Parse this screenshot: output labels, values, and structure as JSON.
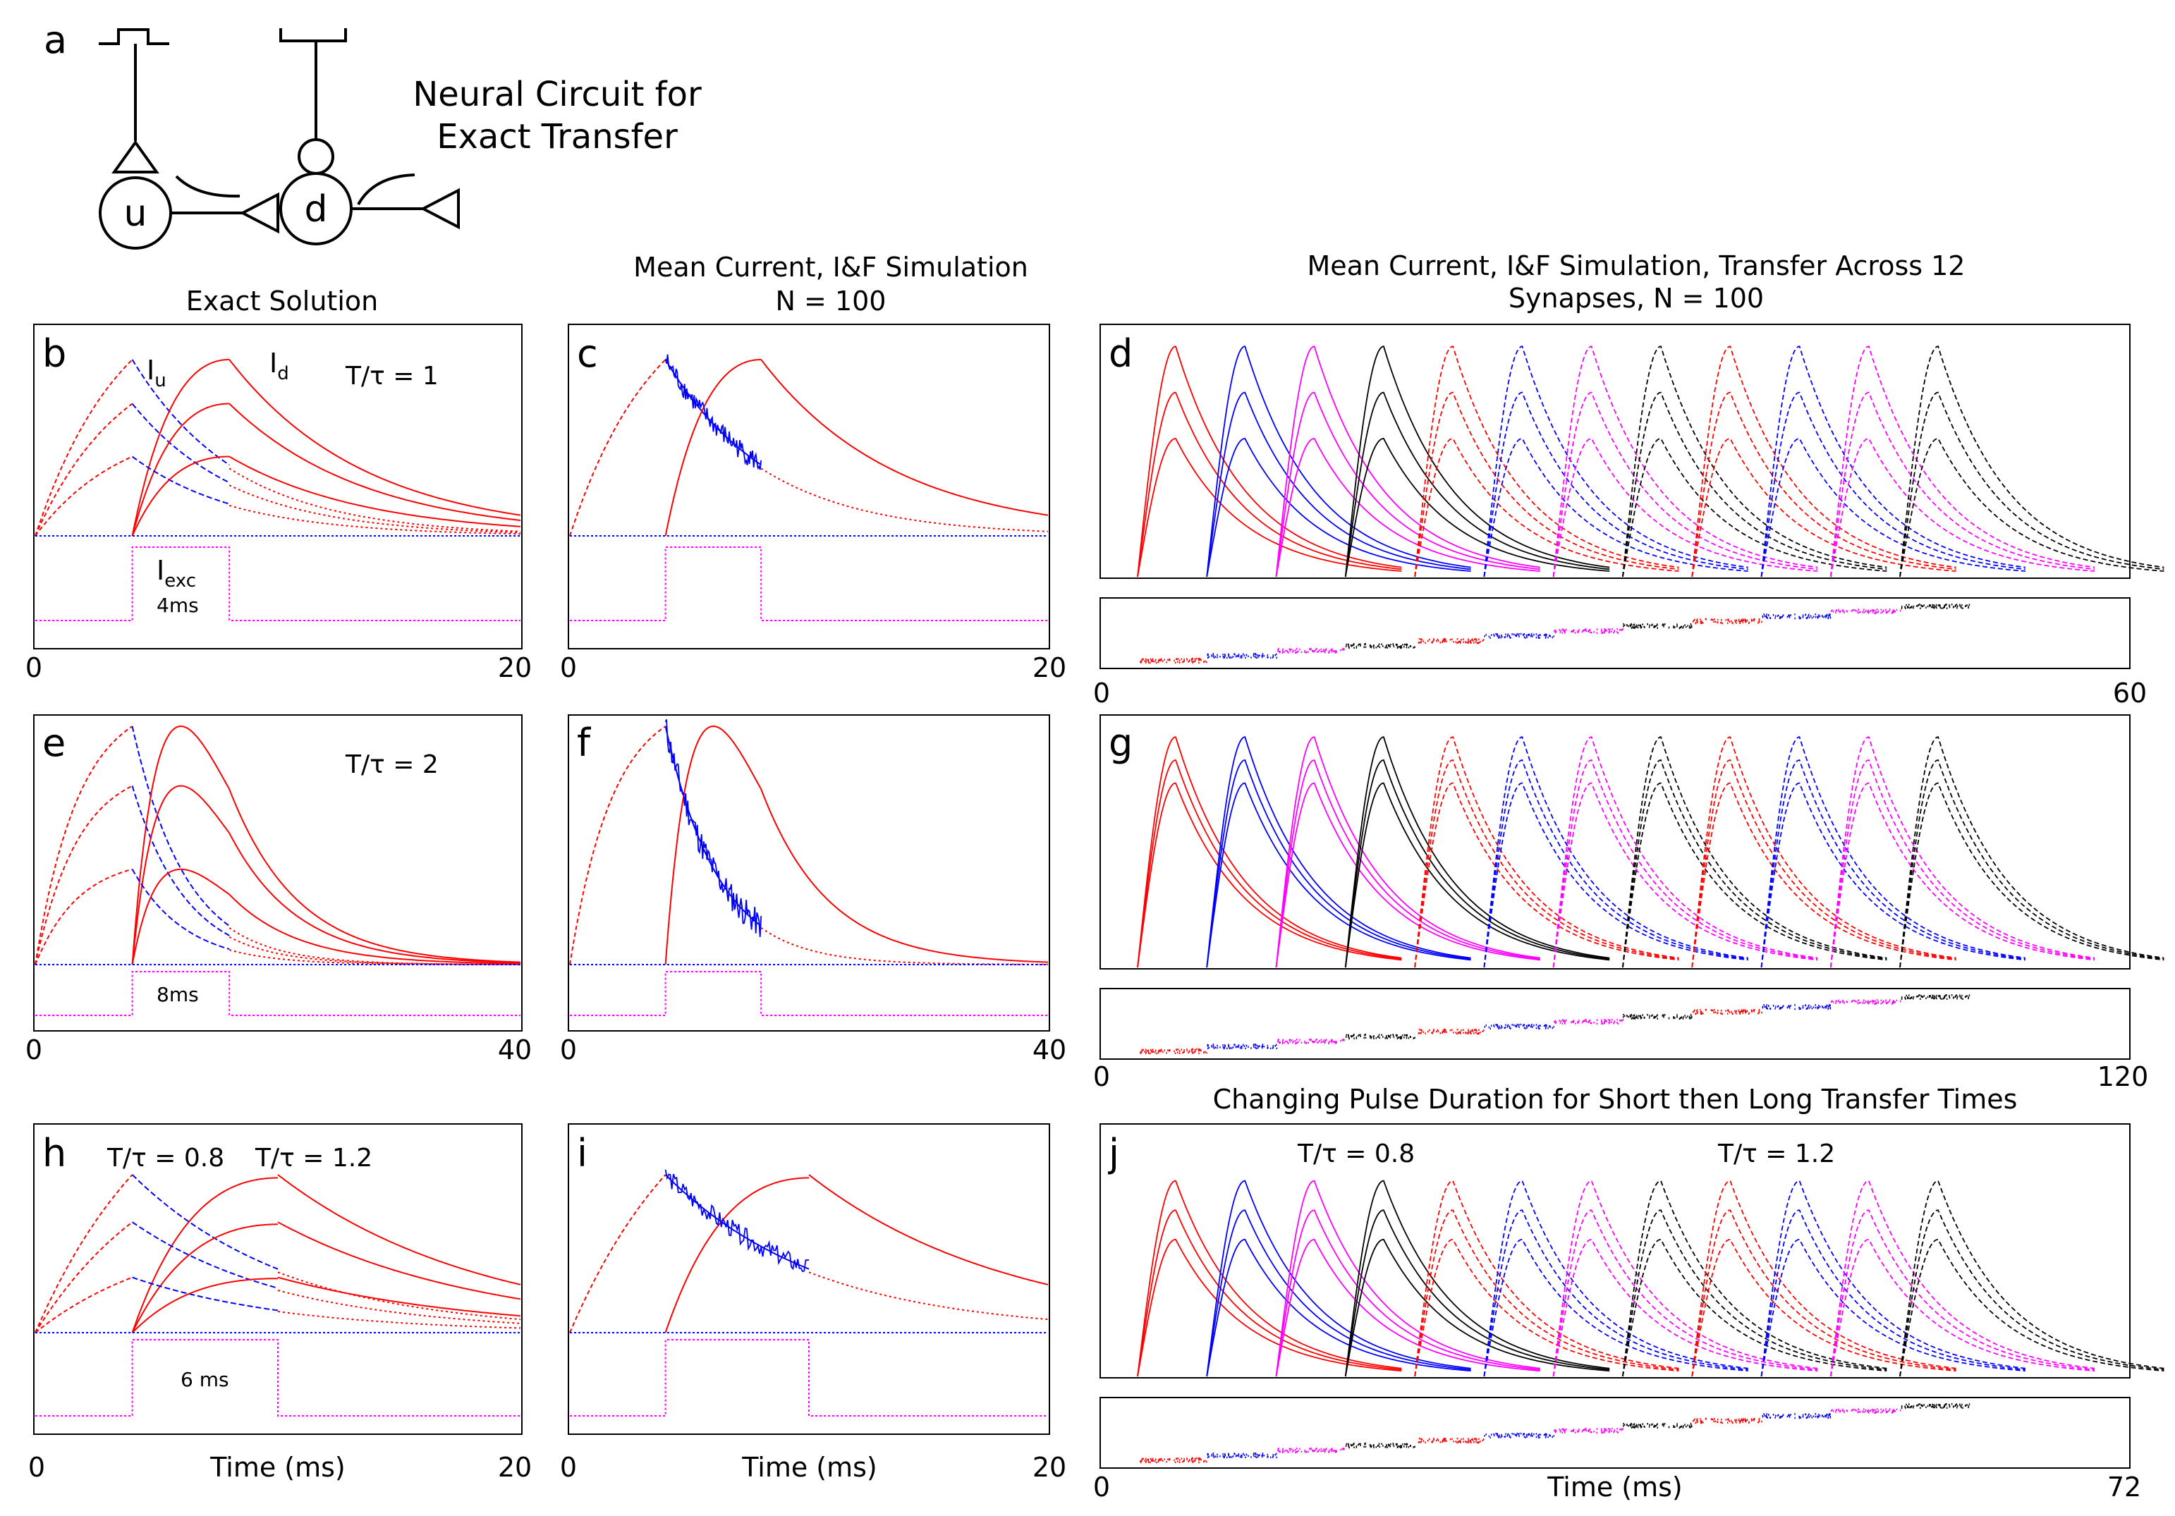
{
  "figure": {
    "circuit": {
      "panel_label": "a",
      "title_line1": "Neural Circuit for",
      "title_line2": "Exact Transfer",
      "node_upstream": "u",
      "node_downstream": "d"
    },
    "column_titles": {
      "left": "Exact Solution",
      "middle_line1": "Mean Current, I&F Simulation",
      "middle_line2": "N = 100",
      "right_line1": "Mean Current, I&F Simulation, Transfer Across 12",
      "right_line2": "Synapses, N = 100",
      "bottom_right": "Changing Pulse Duration for Short then Long Transfer Times"
    },
    "text_labels": {
      "Iu_main": "I",
      "Iu_sub": "u",
      "Id_main": "I",
      "Id_sub": "d",
      "Iexc_main": "I",
      "Iexc_sub": "exc",
      "T_tau_1": "T/τ = 1",
      "T_tau_2": "T/τ = 2",
      "T_tau_08": "T/τ = 0.8",
      "T_tau_12": "T/τ = 1.2",
      "pulse_4ms": "4ms",
      "pulse_8ms": "8ms",
      "pulse_6ms": "6 ms",
      "xlabel": "Time (ms)"
    },
    "colors": {
      "red": "#ff0000",
      "blue": "#0000ff",
      "magenta": "#ff00ff",
      "black": "#000000"
    }
  },
  "chart_data": [
    {
      "panel": "b",
      "type": "line",
      "title": "Exact Solution",
      "xlim": [
        0,
        20
      ],
      "ticks": [
        "0",
        "20"
      ],
      "T_over_tau": 1,
      "pulse_start": 4,
      "pulse_duration": 4,
      "amplitudes": [
        1.0,
        0.75,
        0.45
      ],
      "series": [
        "I_u (blue)",
        "I_d (red)",
        "I_exc (magenta)"
      ]
    },
    {
      "panel": "c",
      "type": "line",
      "title": "Mean Current, I&F Simulation N = 100",
      "xlim": [
        0,
        20
      ],
      "ticks": [
        "0",
        "20"
      ],
      "T_over_tau": 1,
      "pulse_start": 4,
      "pulse_duration": 4,
      "amplitudes": [
        1.0
      ]
    },
    {
      "panel": "d",
      "type": "line",
      "title": "Mean Current, I&F Simulation, Transfer Across 12 Synapses, N = 100",
      "xlim": [
        0,
        60
      ],
      "ticks": [
        "0",
        "60"
      ],
      "populations": 12,
      "pulse_duration": 4,
      "amplitudes": [
        1.0,
        0.8,
        0.6
      ],
      "colors": [
        "red",
        "blue",
        "magenta",
        "black",
        "red",
        "blue",
        "magenta",
        "black",
        "red",
        "blue",
        "magenta",
        "black"
      ]
    },
    {
      "panel": "e",
      "type": "line",
      "xlim": [
        0,
        40
      ],
      "ticks": [
        "0",
        "40"
      ],
      "T_over_tau": 2,
      "pulse_start": 8,
      "pulse_duration": 8,
      "amplitudes": [
        1.0,
        0.75,
        0.4
      ]
    },
    {
      "panel": "f",
      "type": "line",
      "xlim": [
        0,
        40
      ],
      "ticks": [
        "0",
        "40"
      ],
      "T_over_tau": 2,
      "pulse_start": 8,
      "pulse_duration": 8,
      "amplitudes": [
        1.0
      ]
    },
    {
      "panel": "g",
      "type": "line",
      "xlim": [
        0,
        120
      ],
      "ticks": [
        "0",
        "120"
      ],
      "populations": 12,
      "pulse_duration": 8,
      "amplitudes": [
        1.0,
        0.9,
        0.8
      ]
    },
    {
      "panel": "h",
      "type": "line",
      "xlim": [
        0,
        20
      ],
      "ticks": [
        "0",
        "20"
      ],
      "T_over_tau": [
        0.8,
        1.2
      ],
      "pulse_start": 4,
      "pulse_duration": 6,
      "amplitudes": [
        1.0,
        0.7,
        0.35
      ]
    },
    {
      "panel": "i",
      "type": "line",
      "xlim": [
        0,
        20
      ],
      "ticks": [
        "0",
        "20"
      ],
      "T_over_tau": [
        0.8,
        1.2
      ],
      "pulse_start": 4,
      "pulse_duration": 6,
      "amplitudes": [
        1.0
      ]
    },
    {
      "panel": "j",
      "type": "line",
      "title": "Changing Pulse Duration for Short then Long Transfer Times",
      "xlim": [
        0,
        72
      ],
      "ticks": [
        "0",
        "72"
      ],
      "populations": 12,
      "amplitudes": [
        1.0,
        0.85,
        0.7
      ],
      "T_over_tau_first": 0.8,
      "T_over_tau_second": 1.2
    }
  ]
}
